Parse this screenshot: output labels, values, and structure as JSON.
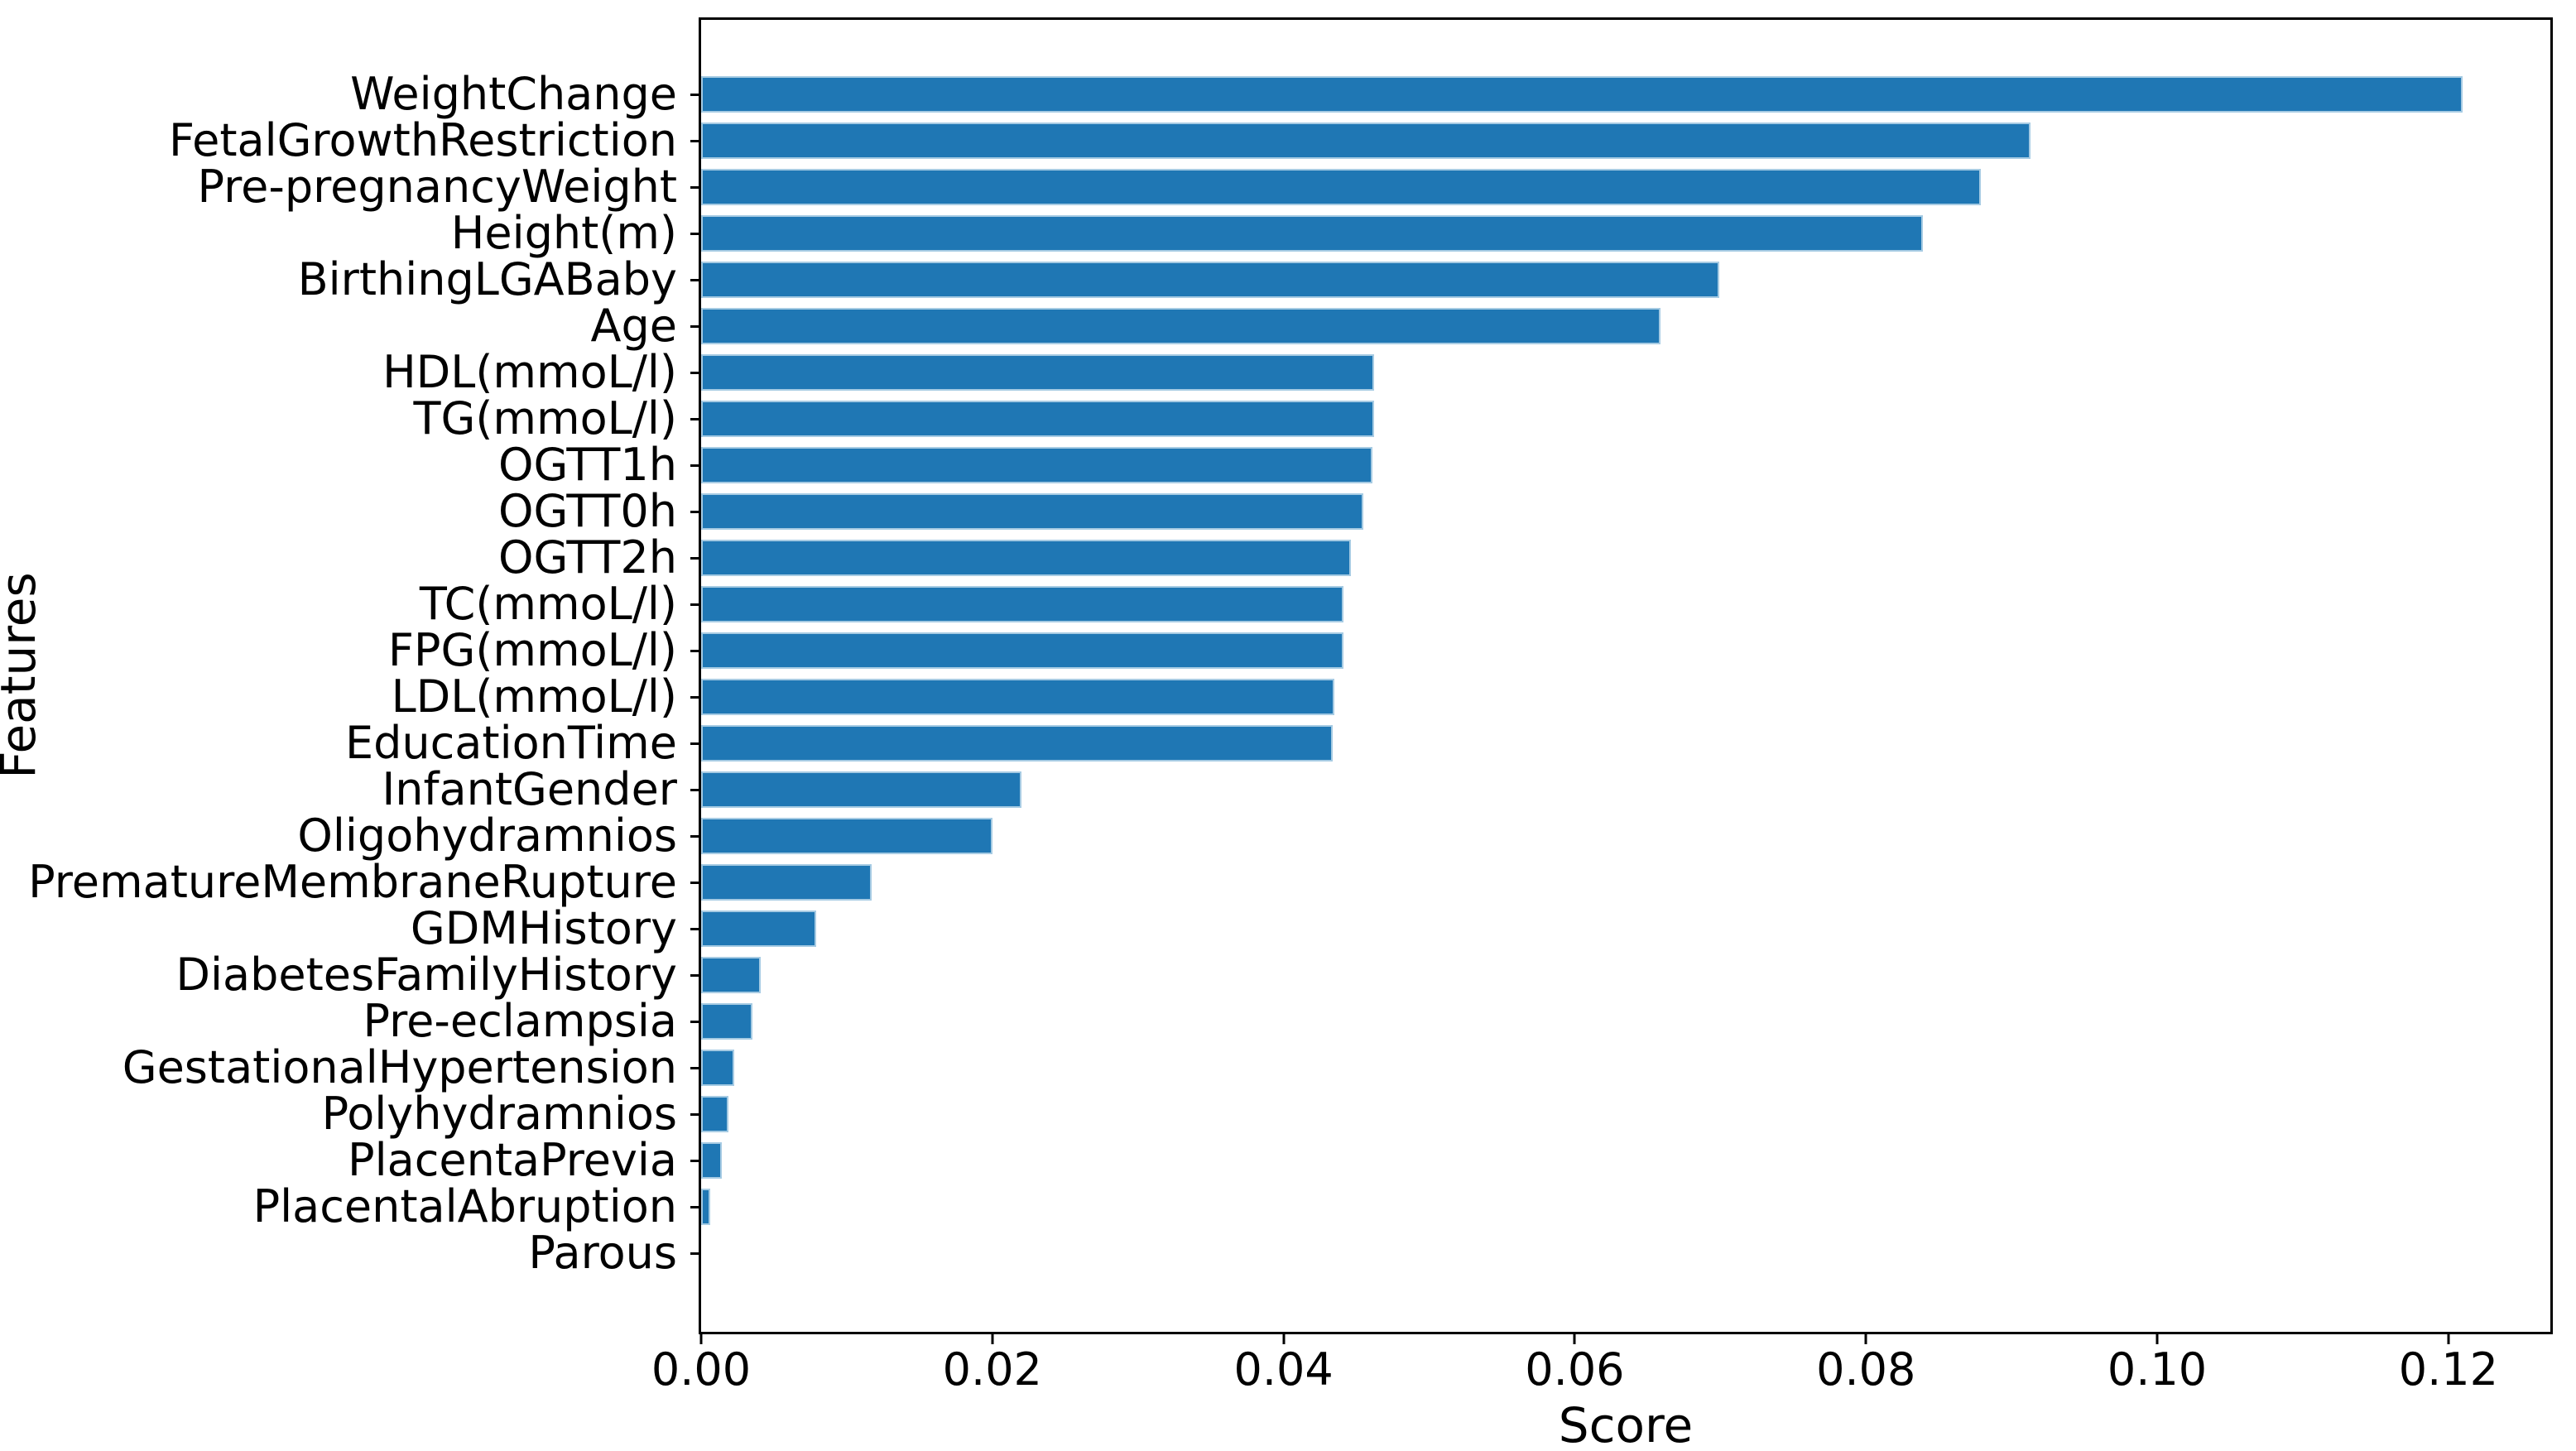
{
  "figure": {
    "background_color": "#ffffff",
    "text_color": "#000000"
  },
  "chart_data": {
    "type": "bar",
    "orientation": "horizontal",
    "title": "",
    "xlabel": "Score",
    "ylabel": "Features",
    "categories": [
      "WeightChange",
      "FetalGrowthRestriction",
      "Pre-pregnancyWeight",
      "Height(m)",
      "BirthingLGABaby",
      "Age",
      "HDL(mmoL/l)",
      "TG(mmoL/l)",
      "OGTT1h",
      "OGTT0h",
      "OGTT2h",
      "TC(mmoL/l)",
      "FPG(mmoL/l)",
      "LDL(mmoL/l)",
      "EducationTime",
      "InfantGender",
      "Oligohydramnios",
      "PrematureMembraneRupture",
      "GDMHistory",
      "DiabetesFamilyHistory",
      "Pre-eclampsia",
      "GestationalHypertension",
      "Polyhydramnios",
      "PlacentaPrevia",
      "PlacentalAbruption",
      "Parous"
    ],
    "values": [
      0.121,
      0.0913,
      0.0879,
      0.0839,
      0.0699,
      0.0659,
      0.0462,
      0.0462,
      0.0461,
      0.0455,
      0.0446,
      0.0441,
      0.0441,
      0.0435,
      0.0434,
      0.022,
      0.02,
      0.0117,
      0.0079,
      0.0041,
      0.0035,
      0.0023,
      0.0019,
      0.0014,
      0.0006,
      0.0
    ],
    "x_ticks": [
      0.0,
      0.02,
      0.04,
      0.06,
      0.08,
      0.1,
      0.12
    ],
    "x_tick_labels": [
      "0.00",
      "0.02",
      "0.04",
      "0.06",
      "0.08",
      "0.10",
      "0.12"
    ],
    "xlim": [
      0,
      0.127
    ],
    "grid": false,
    "legend": null,
    "bar_color": "#1f77b4",
    "bar_edge_color": "#a6cbe3",
    "axis_color": "#000000"
  }
}
